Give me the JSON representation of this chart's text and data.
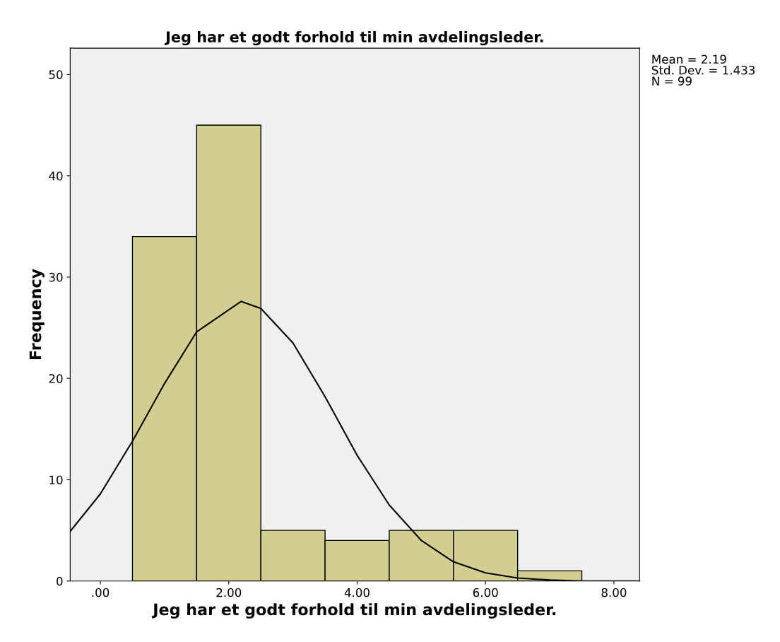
{
  "chart_data": {
    "type": "histogram",
    "title": "Jeg har et godt forhold til min avdelingsleder.",
    "xlabel": "Jeg har et godt forhold til min avdelingsleder.",
    "ylabel": "Frequency",
    "bins": [
      0.5,
      1.5,
      2.5,
      3.5,
      4.5,
      5.5,
      6.5,
      7.5
    ],
    "values": [
      34,
      45,
      5,
      4,
      5,
      5,
      1
    ],
    "color": "#d3ce8f",
    "series": [
      {
        "type": "line",
        "color": "#000000",
        "x": [
          -0.47,
          0,
          0.5,
          1,
          1.5,
          2.19,
          2.5,
          3,
          3.5,
          4,
          4.5,
          5,
          5.5,
          6,
          6.5,
          7,
          7.5,
          8,
          8.4
        ],
        "values": [
          4.9,
          8.6,
          13.8,
          19.5,
          24.6,
          27.6,
          26.9,
          23.5,
          18.2,
          12.4,
          7.5,
          4.0,
          1.9,
          0.8,
          0.3,
          0.1,
          0.0,
          0.0,
          0.0
        ]
      }
    ],
    "xlim": [
      -0.47,
      8.4
    ],
    "ylim": [
      0,
      52.6
    ],
    "xticks": [
      {
        "value": 0,
        "label": ".00"
      },
      {
        "value": 2,
        "label": "2.00"
      },
      {
        "value": 4,
        "label": "4.00"
      },
      {
        "value": 6,
        "label": "6.00"
      },
      {
        "value": 8,
        "label": "8.00"
      }
    ],
    "yticks": [
      0,
      10,
      20,
      30,
      40,
      50
    ],
    "annotations": [
      "Mean = 2.19",
      "Std. Dev. = 1.433",
      "N = 99"
    ],
    "grid": false,
    "legend": false
  }
}
